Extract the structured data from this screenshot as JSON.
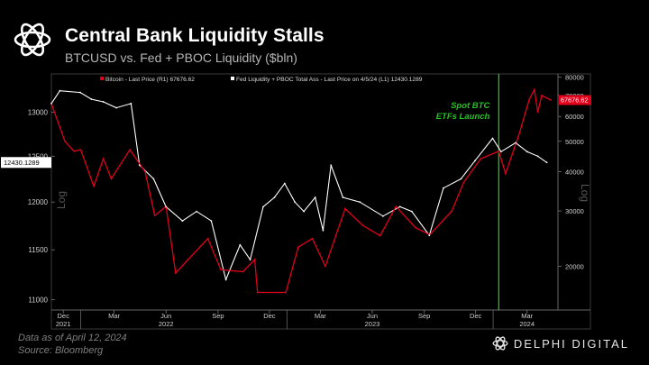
{
  "header": {
    "title": "Central Bank Liquidity Stalls",
    "subtitle": "BTCUSD vs. Fed + PBOC Liquidity  ($bln)"
  },
  "footer": {
    "data_note": "Data as of April 12, 2024",
    "source": "Source:  Bloomberg",
    "brand": "DELPHI DIGITAL"
  },
  "colors": {
    "btc": "#e0001b",
    "liquidity": "#ffffff",
    "annotation": "#22c41e",
    "background": "#000000"
  },
  "chart_data": {
    "type": "line",
    "legend": [
      "Bitcoin - Last Price (R1) 67676.62",
      "Fed Liquidity + PBOC Total Ass - Last Price on 4/5/24 (L1) 12430.1289"
    ],
    "annotation": {
      "line1": "Spot BTC",
      "line2": "ETFs Launch",
      "date": "2024-01-11"
    },
    "left_axis": {
      "label": "Log",
      "ticks": [
        "11000",
        "11500",
        "12000",
        "12500",
        "13000"
      ],
      "range": [
        10900,
        13450
      ],
      "scale": "log"
    },
    "right_axis": {
      "label": "Log",
      "ticks": [
        "20000",
        "30000",
        "40000",
        "50000",
        "60000",
        "70000",
        "80000"
      ],
      "range": [
        14500,
        82000
      ],
      "scale": "log"
    },
    "x_ticks": [
      "Dec",
      "Mar",
      "Jun",
      "Sep",
      "Dec",
      "Mar",
      "Jun",
      "Sep",
      "Dec",
      "Mar"
    ],
    "x_years": [
      "2021",
      "2022",
      "2023",
      "2024"
    ],
    "last_value_tags": {
      "liquidity": "12430.1289",
      "btc": "67676.62"
    },
    "series": [
      {
        "name": "Bitcoin - Last Price (R1)",
        "values": [
          [
            "2021-11-10",
            66000
          ],
          [
            "2021-12-04",
            50000
          ],
          [
            "2021-12-20",
            46500
          ],
          [
            "2022-01-01",
            47000
          ],
          [
            "2022-01-24",
            36000
          ],
          [
            "2022-02-10",
            44000
          ],
          [
            "2022-02-24",
            38000
          ],
          [
            "2022-03-29",
            47000
          ],
          [
            "2022-04-25",
            40000
          ],
          [
            "2022-05-12",
            29000
          ],
          [
            "2022-06-01",
            31000
          ],
          [
            "2022-06-18",
            19000
          ],
          [
            "2022-07-10",
            21000
          ],
          [
            "2022-08-14",
            24500
          ],
          [
            "2022-09-06",
            19500
          ],
          [
            "2022-10-15",
            19200
          ],
          [
            "2022-11-05",
            21000
          ],
          [
            "2022-11-10",
            16500
          ],
          [
            "2022-12-30",
            16500
          ],
          [
            "2023-01-21",
            23000
          ],
          [
            "2023-02-15",
            24500
          ],
          [
            "2023-03-10",
            20000
          ],
          [
            "2023-04-14",
            30500
          ],
          [
            "2023-05-15",
            27000
          ],
          [
            "2023-06-15",
            25000
          ],
          [
            "2023-07-13",
            31000
          ],
          [
            "2023-08-17",
            26500
          ],
          [
            "2023-09-11",
            25200
          ],
          [
            "2023-10-20",
            30000
          ],
          [
            "2023-11-10",
            37000
          ],
          [
            "2023-12-10",
            44000
          ],
          [
            "2024-01-11",
            46500
          ],
          [
            "2024-01-23",
            39500
          ],
          [
            "2024-02-15",
            52000
          ],
          [
            "2024-03-05",
            68000
          ],
          [
            "2024-03-14",
            73000
          ],
          [
            "2024-03-20",
            62000
          ],
          [
            "2024-03-27",
            70000
          ],
          [
            "2024-04-12",
            67676.62
          ]
        ]
      },
      {
        "name": "Fed Liquidity + PBOC Total Ass (L1)",
        "values": [
          [
            "2021-11-10",
            13100
          ],
          [
            "2021-11-25",
            13250
          ],
          [
            "2021-12-31",
            13230
          ],
          [
            "2022-01-20",
            13150
          ],
          [
            "2022-02-10",
            13120
          ],
          [
            "2022-03-05",
            13050
          ],
          [
            "2022-03-31",
            13100
          ],
          [
            "2022-04-15",
            12400
          ],
          [
            "2022-05-10",
            12250
          ],
          [
            "2022-06-01",
            11950
          ],
          [
            "2022-06-30",
            11800
          ],
          [
            "2022-07-25",
            11900
          ],
          [
            "2022-08-20",
            11800
          ],
          [
            "2022-09-15",
            11200
          ],
          [
            "2022-10-10",
            11550
          ],
          [
            "2022-10-28",
            11400
          ],
          [
            "2022-11-20",
            11950
          ],
          [
            "2022-12-10",
            12050
          ],
          [
            "2022-12-28",
            12200
          ],
          [
            "2023-01-15",
            12000
          ],
          [
            "2023-01-31",
            11900
          ],
          [
            "2023-02-20",
            12050
          ],
          [
            "2023-03-06",
            11700
          ],
          [
            "2023-03-20",
            12400
          ],
          [
            "2023-04-10",
            12050
          ],
          [
            "2023-05-10",
            12000
          ],
          [
            "2023-06-20",
            11850
          ],
          [
            "2023-07-20",
            11950
          ],
          [
            "2023-08-10",
            11900
          ],
          [
            "2023-09-10",
            11650
          ],
          [
            "2023-10-05",
            12150
          ],
          [
            "2023-11-05",
            12250
          ],
          [
            "2023-11-30",
            12450
          ],
          [
            "2023-12-31",
            12700
          ],
          [
            "2024-01-15",
            12550
          ],
          [
            "2024-02-10",
            12650
          ],
          [
            "2024-03-01",
            12550
          ],
          [
            "2024-03-20",
            12500
          ],
          [
            "2024-04-05",
            12430.1289
          ]
        ]
      }
    ]
  }
}
